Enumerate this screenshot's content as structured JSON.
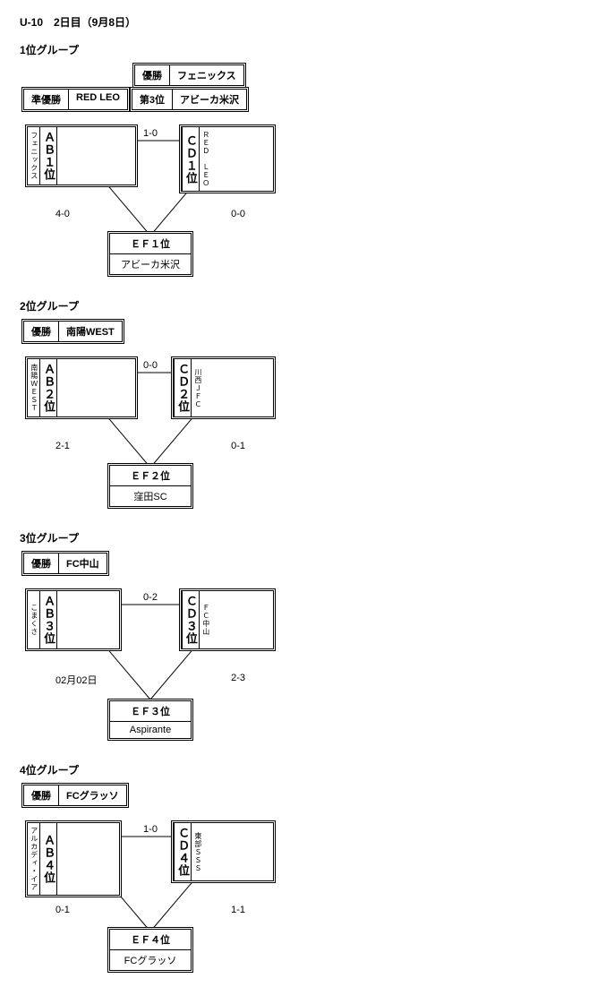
{
  "page_title": "U-10　2日目（9月8日）",
  "colors": {
    "line": "#000000",
    "bg": "#ffffff"
  },
  "groups": [
    {
      "heading": "1位グループ",
      "results": [
        [
          {
            "label": "優勝",
            "value": "フェニックス"
          }
        ],
        [
          {
            "label": "準優勝",
            "value": "RED LEO"
          },
          {
            "label": "第3位",
            "value": "アビーカ米沢"
          }
        ]
      ],
      "results_offset": true,
      "tri": {
        "left": {
          "team": "フェニックス",
          "seed": "ＡＢ１位"
        },
        "right": {
          "team": "ＲＥＤ　ＬＥＯ",
          "seed": "ＣＤ１位"
        },
        "bottom": {
          "team": "アビーカ米沢",
          "seed": "ＥＦ１位"
        },
        "scores": {
          "top": "1-0",
          "bl": "4-0",
          "br": "0-0"
        }
      }
    },
    {
      "heading": "2位グループ",
      "results": [
        [
          {
            "label": "優勝",
            "value": "南陽WEST"
          }
        ]
      ],
      "results_offset": false,
      "tri": {
        "left": {
          "team": "南陽ＷＥＳＴ",
          "seed": "ＡＢ２位"
        },
        "right": {
          "team": "川西ＪＦＣ",
          "seed": "ＣＤ２位"
        },
        "bottom": {
          "team": "窪田SC",
          "seed": "ＥＦ２位"
        },
        "scores": {
          "top": "0-0",
          "bl": "2-1",
          "br": "0-1"
        }
      }
    },
    {
      "heading": "3位グループ",
      "results": [
        [
          {
            "label": "優勝",
            "value": "FC中山"
          }
        ]
      ],
      "results_offset": false,
      "tri": {
        "left": {
          "team": "こまくさ",
          "seed": "ＡＢ３位"
        },
        "right": {
          "team": "ＦＣ中山",
          "seed": "ＣＤ３位"
        },
        "bottom": {
          "team": "Aspirante",
          "seed": "ＥＦ３位"
        },
        "scores": {
          "top": "0-2",
          "bl": "02月02日",
          "br": "2-3"
        }
      }
    },
    {
      "heading": "4位グループ",
      "results": [
        [
          {
            "label": "優勝",
            "value": "FCグラッソ"
          }
        ]
      ],
      "results_offset": false,
      "tri": {
        "left": {
          "team": "アルカディ・イア",
          "seed": "ＡＢ４位"
        },
        "right": {
          "team": "東部ＳＳＳ",
          "seed": "ＣＤ４位"
        },
        "bottom": {
          "team": "FCグラッソ",
          "seed": "ＥＦ４位"
        },
        "scores": {
          "top": "1-0",
          "bl": "0-1",
          "br": "1-1"
        }
      }
    }
  ]
}
